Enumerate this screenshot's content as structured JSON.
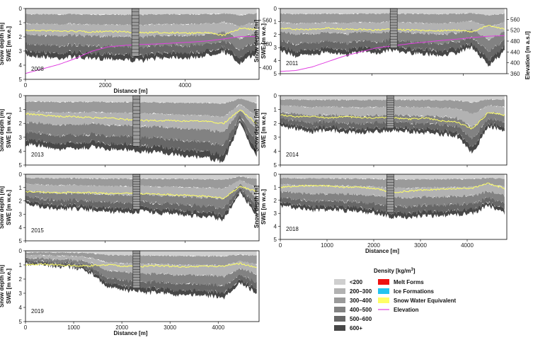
{
  "chart_data": {
    "type": "area",
    "ylabel_primary": "Snow depth [m]",
    "ylabel_secondary": "SWE [m w.e.]",
    "xlabel": "Distance [m]",
    "y2label": "Elevation [m a.s.l]",
    "legend": {
      "title": "Density [kg/m",
      "title_sup": "3",
      "title_end": "]",
      "density_classes": [
        {
          "label": "<200",
          "color": "#cfcfcf"
        },
        {
          "label": "200–300",
          "color": "#b2b2b2"
        },
        {
          "label": "300–400",
          "color": "#9a9a9a"
        },
        {
          "label": "400–500",
          "color": "#828282"
        },
        {
          "label": "500–600",
          "color": "#676767"
        },
        {
          "label": "600+",
          "color": "#474747"
        }
      ],
      "other": [
        {
          "label": "Melt Forms",
          "color": "#ee1111",
          "kind": "box"
        },
        {
          "label": "Ice Formations",
          "color": "#22c4f0",
          "kind": "box"
        },
        {
          "label": "Snow Water Equivalent",
          "color": "#ffff66",
          "kind": "box"
        },
        {
          "label": "Elevation",
          "color": "#e040e0",
          "kind": "line"
        }
      ]
    },
    "panels": [
      {
        "year": "2008",
        "x_ticks": [
          0,
          2000,
          4000
        ],
        "x_ticklabels_shown": true,
        "xlabel_shown": true,
        "x_max": 5800,
        "y_ticks": [
          0,
          1,
          2,
          3,
          4,
          5
        ],
        "y2_ticks": [
          400,
          480,
          560
        ],
        "y2_range": [
          360,
          600
        ],
        "depth_profile_m": [
          3.3,
          3.4,
          3.5,
          3.4,
          3.6,
          3.5,
          3.6,
          3.7,
          3.5,
          3.4,
          3.5,
          3.3,
          3.0,
          3.9,
          3.1
        ],
        "swe_profile_m": [
          1.55,
          1.55,
          1.6,
          1.6,
          1.65,
          1.6,
          1.65,
          1.7,
          1.7,
          1.7,
          1.75,
          1.7,
          1.9,
          1.4,
          1.5
        ],
        "elevation_profile_m": [
          380,
          395,
          410,
          430,
          455,
          470,
          475,
          478,
          480,
          483,
          486,
          490,
          497,
          505,
          505
        ]
      },
      {
        "year": "2011",
        "x_ticks": [
          0,
          2000,
          4000
        ],
        "x_ticklabels_shown": false,
        "xlabel_shown": false,
        "x_max": 4900,
        "y_ticks": [
          0,
          1,
          2,
          3,
          4,
          5
        ],
        "y2_ticks": [
          360,
          400,
          440,
          480,
          520,
          560
        ],
        "y2_range": [
          360,
          600
        ],
        "depth_profile_m": [
          3.2,
          3.7,
          3.5,
          3.3,
          3.6,
          3.3,
          3.4,
          3.2,
          3.4,
          3.5,
          3.6,
          3.4,
          3.0,
          4.4,
          3.3
        ],
        "swe_profile_m": [
          1.5,
          1.6,
          1.6,
          1.5,
          1.6,
          1.6,
          1.65,
          1.6,
          1.65,
          1.7,
          1.7,
          1.65,
          1.8,
          1.3,
          1.6
        ],
        "elevation_profile_m": [
          368,
          372,
          385,
          405,
          425,
          440,
          455,
          462,
          470,
          476,
          482,
          487,
          493,
          498,
          500
        ]
      },
      {
        "year": "2013",
        "x_ticks": [
          0,
          2000,
          4000
        ],
        "x_ticklabels_shown": false,
        "xlabel_shown": false,
        "x_max": 5800,
        "y_ticks": [
          0,
          1,
          2,
          3,
          4,
          5
        ],
        "depth_profile_m": [
          3.5,
          3.6,
          3.9,
          3.8,
          3.7,
          3.9,
          3.9,
          4.0,
          4.1,
          4.2,
          4.4,
          4.5,
          4.8,
          1.9,
          4.5
        ],
        "swe_profile_m": [
          1.3,
          1.4,
          1.5,
          1.5,
          1.6,
          1.6,
          1.7,
          1.8,
          1.8,
          1.8,
          1.85,
          1.85,
          2.0,
          1.0,
          2.0
        ]
      },
      {
        "year": "2014",
        "x_ticks": [
          0,
          2000,
          4000
        ],
        "x_ticklabels_shown": false,
        "xlabel_shown": false,
        "x_max": 4800,
        "y_ticks": [
          0,
          1,
          2,
          3,
          4,
          5
        ],
        "depth_profile_m": [
          2.2,
          2.4,
          2.6,
          2.5,
          2.6,
          2.7,
          2.6,
          2.5,
          2.6,
          2.7,
          2.8,
          2.9,
          4.2,
          2.2,
          2.5
        ],
        "swe_profile_m": [
          1.4,
          1.5,
          1.5,
          1.6,
          1.5,
          1.6,
          1.6,
          1.6,
          1.7,
          1.6,
          1.8,
          1.9,
          2.4,
          1.2,
          1.4
        ]
      },
      {
        "year": "2015",
        "x_ticks": [
          0,
          2000,
          4000
        ],
        "x_ticklabels_shown": false,
        "xlabel_shown": false,
        "x_max": 5800,
        "y_ticks": [
          0,
          1,
          2,
          3,
          4,
          5
        ],
        "depth_profile_m": [
          2.2,
          2.5,
          2.6,
          2.6,
          2.7,
          2.8,
          2.9,
          2.8,
          2.9,
          3.0,
          3.1,
          3.2,
          3.4,
          1.3,
          3.1
        ],
        "swe_profile_m": [
          1.3,
          1.35,
          1.4,
          1.35,
          1.4,
          1.45,
          1.4,
          1.45,
          1.5,
          1.55,
          1.6,
          1.65,
          1.8,
          0.9,
          1.3
        ]
      },
      {
        "year": "2018",
        "x_ticks": [
          0,
          1000,
          2000,
          3000,
          4000,
          5000
        ],
        "x_ticklabels_shown": true,
        "xlabel_shown": true,
        "x_max": 4800,
        "y_ticks": [
          0,
          1,
          2,
          3,
          4,
          5
        ],
        "depth_profile_m": [
          2.4,
          2.6,
          2.8,
          2.7,
          2.8,
          2.9,
          3.0,
          3.3,
          3.3,
          3.2,
          3.2,
          3.1,
          3.0,
          2.4,
          3.0
        ],
        "swe_profile_m": [
          1.0,
          0.9,
          0.85,
          0.9,
          1.0,
          1.0,
          1.1,
          1.4,
          1.3,
          1.2,
          1.15,
          1.1,
          1.05,
          0.7,
          1.1
        ]
      },
      {
        "year": "2019",
        "x_ticks": [
          0,
          1000,
          2000,
          3000,
          4000,
          5000
        ],
        "x_ticklabels_shown": true,
        "xlabel_shown": true,
        "x_max": 4800,
        "y_ticks": [
          0,
          1,
          2,
          3,
          4,
          5
        ],
        "depth_profile_m": [
          0.9,
          1.0,
          1.1,
          1.2,
          1.6,
          2.6,
          2.8,
          2.9,
          3.0,
          3.1,
          3.1,
          3.2,
          3.3,
          2.3,
          3.0
        ],
        "swe_profile_m": [
          1.0,
          0.95,
          1.0,
          1.05,
          1.05,
          1.0,
          1.1,
          1.1,
          1.05,
          1.1,
          1.15,
          1.1,
          1.1,
          0.9,
          1.2
        ]
      }
    ]
  }
}
